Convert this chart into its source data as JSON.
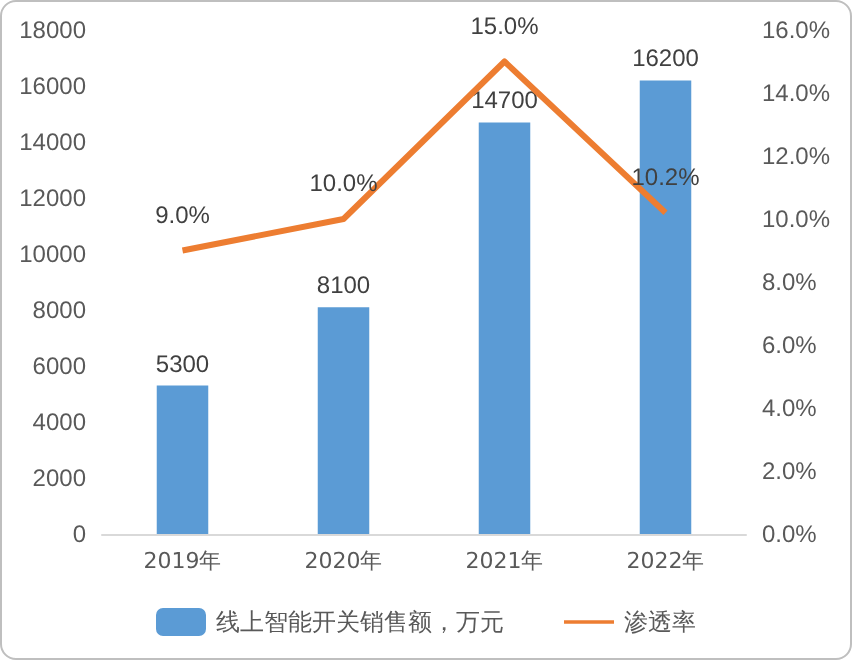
{
  "chart_data": {
    "type": "bar",
    "categories": [
      "2019年",
      "2020年",
      "2021年",
      "2022年"
    ],
    "series": [
      {
        "name": "线上智能开关销售额，万元",
        "color": "#5b9bd5",
        "values": [
          5300,
          8100,
          14700,
          16200
        ],
        "value_labels": [
          "5300",
          "8100",
          "14700",
          "16200"
        ]
      },
      {
        "name": "渗透率",
        "type": "line",
        "axis": "y2",
        "color": "#ed7d31",
        "values": [
          9.0,
          10.0,
          15.0,
          10.2
        ],
        "value_labels": [
          "9.0%",
          "10.0%",
          "15.0%",
          "10.2%"
        ]
      }
    ],
    "ylim": [
      0,
      18000
    ],
    "yticks": [
      0,
      2000,
      4000,
      6000,
      8000,
      10000,
      12000,
      14000,
      16000,
      18000
    ],
    "y2lim": [
      0,
      16
    ],
    "y2ticks": [
      {
        "value": 0,
        "label": "0.0%"
      },
      {
        "value": 2,
        "label": "2.0%"
      },
      {
        "value": 4,
        "label": "4.0%"
      },
      {
        "value": 6,
        "label": "6.0%"
      },
      {
        "value": 8,
        "label": "8.0%"
      },
      {
        "value": 10,
        "label": "10.0%"
      },
      {
        "value": 12,
        "label": "12.0%"
      },
      {
        "value": 14,
        "label": "14.0%"
      },
      {
        "value": 16,
        "label": "16.0%"
      }
    ],
    "legend": "bottom",
    "marker": "none"
  }
}
